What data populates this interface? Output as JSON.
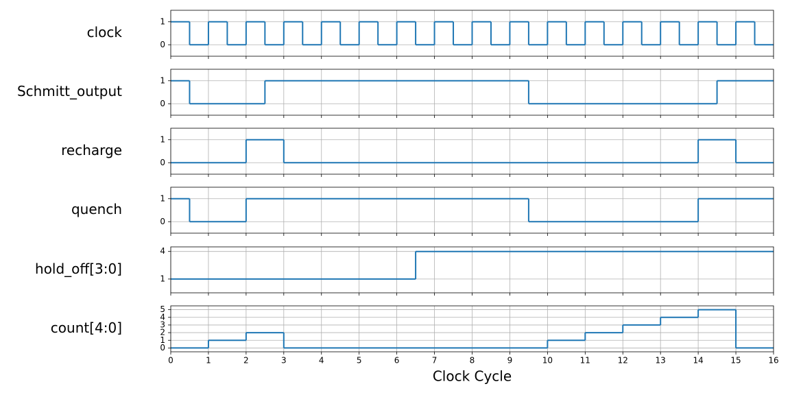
{
  "chart_data": [
    {
      "type": "step",
      "ylabel": "clock",
      "color": "#1f77b4",
      "x": [
        0,
        0.5,
        1,
        1.5,
        2,
        2.5,
        3,
        3.5,
        4,
        4.5,
        5,
        5.5,
        6,
        6.5,
        7,
        7.5,
        8,
        8.5,
        9,
        9.5,
        10,
        10.5,
        11,
        11.5,
        12,
        12.5,
        13,
        13.5,
        14,
        14.5,
        15,
        15.5
      ],
      "values": [
        1,
        0,
        1,
        0,
        1,
        0,
        1,
        0,
        1,
        0,
        1,
        0,
        1,
        0,
        1,
        0,
        1,
        0,
        1,
        0,
        1,
        0,
        1,
        0,
        1,
        0,
        1,
        0,
        1,
        0,
        1,
        0
      ],
      "xlim": [
        0,
        16
      ],
      "xticks": [
        0,
        1,
        2,
        3,
        4,
        5,
        6,
        7,
        8,
        9,
        10,
        11,
        12,
        13,
        14,
        15,
        16
      ],
      "ylim": [
        -0.5,
        1.5
      ],
      "yticks": [
        0,
        1
      ],
      "grid": true
    },
    {
      "type": "step",
      "ylabel": "Schmitt_output",
      "color": "#1f77b4",
      "x": [
        0,
        0.5,
        2.5,
        9.5,
        14.5
      ],
      "values": [
        1,
        0,
        1,
        0,
        1
      ],
      "xlim": [
        0,
        16
      ],
      "xticks": [
        0,
        1,
        2,
        3,
        4,
        5,
        6,
        7,
        8,
        9,
        10,
        11,
        12,
        13,
        14,
        15,
        16
      ],
      "ylim": [
        -0.5,
        1.5
      ],
      "yticks": [
        0,
        1
      ],
      "grid": true
    },
    {
      "type": "step",
      "ylabel": "recharge",
      "color": "#1f77b4",
      "x": [
        0,
        2,
        3,
        14,
        15
      ],
      "values": [
        0,
        1,
        0,
        1,
        0
      ],
      "xlim": [
        0,
        16
      ],
      "xticks": [
        0,
        1,
        2,
        3,
        4,
        5,
        6,
        7,
        8,
        9,
        10,
        11,
        12,
        13,
        14,
        15,
        16
      ],
      "ylim": [
        -0.5,
        1.5
      ],
      "yticks": [
        0,
        1
      ],
      "grid": true
    },
    {
      "type": "step",
      "ylabel": "quench",
      "color": "#1f77b4",
      "x": [
        0,
        0.5,
        2,
        9.5,
        14
      ],
      "values": [
        1,
        0,
        1,
        0,
        1
      ],
      "xlim": [
        0,
        16
      ],
      "xticks": [
        0,
        1,
        2,
        3,
        4,
        5,
        6,
        7,
        8,
        9,
        10,
        11,
        12,
        13,
        14,
        15,
        16
      ],
      "ylim": [
        -0.5,
        1.5
      ],
      "yticks": [
        0,
        1
      ],
      "grid": true
    },
    {
      "type": "step",
      "ylabel": "hold_off[3:0]",
      "color": "#1f77b4",
      "x": [
        0,
        6.5
      ],
      "values": [
        1,
        4
      ],
      "xlim": [
        0,
        16
      ],
      "xticks": [
        0,
        1,
        2,
        3,
        4,
        5,
        6,
        7,
        8,
        9,
        10,
        11,
        12,
        13,
        14,
        15,
        16
      ],
      "ylim": [
        -0.5,
        4.5
      ],
      "yticks": [
        1,
        4
      ],
      "grid": true
    },
    {
      "type": "step",
      "ylabel": "count[4:0]",
      "xlabel": "Clock Cycle",
      "xtick_labels": true,
      "color": "#1f77b4",
      "x": [
        0,
        1,
        2,
        3,
        10,
        11,
        12,
        13,
        14,
        15
      ],
      "values": [
        0,
        1,
        2,
        0,
        1,
        2,
        3,
        4,
        5,
        0
      ],
      "xlim": [
        0,
        16
      ],
      "xticks": [
        0,
        1,
        2,
        3,
        4,
        5,
        6,
        7,
        8,
        9,
        10,
        11,
        12,
        13,
        14,
        15,
        16
      ],
      "ylim": [
        -0.5,
        5.5
      ],
      "yticks": [
        0,
        1,
        2,
        3,
        4,
        5
      ],
      "grid": true
    }
  ]
}
